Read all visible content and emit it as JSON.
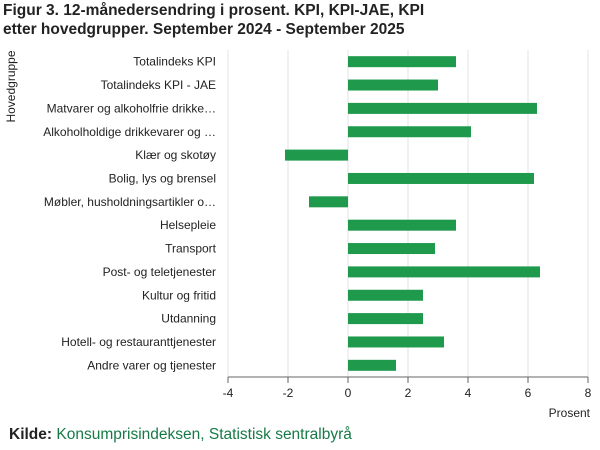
{
  "title": {
    "line1": "Figur 3. 12-månedersendring i prosent. KPI, KPI-JAE, KPI",
    "line2": "etter hovedgrupper. September 2024 - September 2025"
  },
  "source": {
    "label": "Kilde:",
    "text": "Konsumprisindeksen, Statistisk sentralbyrå"
  },
  "colors": {
    "bar": "#1f9a4d",
    "grid": "#e3e3e3",
    "axis": "#666666",
    "text": "#222222",
    "link": "#177a46"
  },
  "chart_data": {
    "type": "bar",
    "orientation": "horizontal",
    "title": "Figur 3. 12-månedersendring i prosent. KPI, KPI-JAE, KPI etter hovedgrupper. September 2024 - September 2025",
    "ylabel": "Hovedgruppe",
    "xlabel": "Prosent",
    "xlim": [
      -4,
      8
    ],
    "xticks": [
      -4,
      -2,
      0,
      2,
      4,
      6,
      8
    ],
    "grid": true,
    "categories": [
      "Totalindeks KPI",
      "Totalindeks KPI - JAE",
      "Matvarer og alkoholfrie drikke…",
      "Alkoholholdige drikkevarer og …",
      "Klær og skotøy",
      "Bolig, lys og brensel",
      "Møbler, husholdningsartikler o…",
      "Helsepleie",
      "Transport",
      "Post- og teletjenester",
      "Kultur og fritid",
      "Utdanning",
      "Hotell- og restauranttjenester",
      "Andre varer og tjenester"
    ],
    "values": [
      3.6,
      3.0,
      6.3,
      4.1,
      -2.1,
      6.2,
      -1.3,
      3.6,
      2.9,
      6.4,
      2.5,
      2.5,
      3.2,
      1.6
    ]
  }
}
